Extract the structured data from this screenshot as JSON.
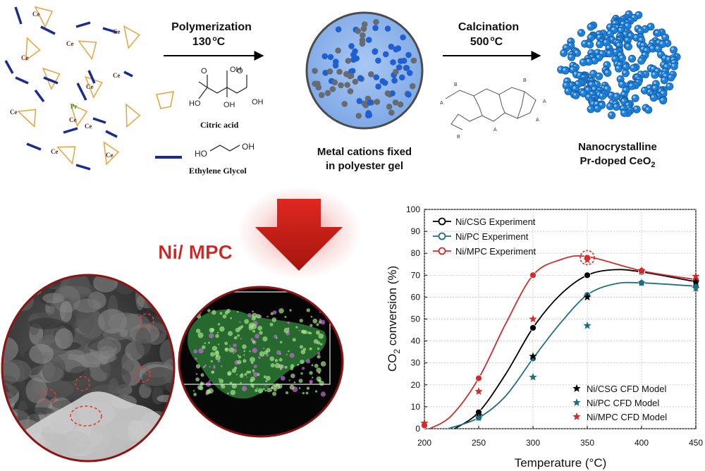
{
  "scheme": {
    "polymerization": {
      "title": "Polymerization",
      "temp": "130",
      "unit": "C"
    },
    "calcination": {
      "title": "Calcination",
      "temp": "500",
      "unit": "C"
    },
    "precursor_labels": {
      "ce": "Ce",
      "pr": "Pr"
    },
    "reagents": {
      "citric_acid": "Citric acid",
      "ethylene_glycol": "Ethylene Glycol",
      "ho": "HO",
      "oh": "OH"
    },
    "gel_caption": [
      "Metal cations fixed",
      "in polyester gel"
    ],
    "product_caption": {
      "line1": "Nanocrystalline",
      "line2_pre": "Pr-doped CeO",
      "line2_sub": "2"
    },
    "network_labels": {
      "a": "A",
      "b": "B"
    },
    "sample_label": "Ni/ MPC",
    "colors": {
      "cation_blue": "#1f5fd0",
      "cation_grey": "#666b73",
      "arrow_red": "#c8231e",
      "ligand_orange": "#e8a33c",
      "ligand_blue": "#1a2d8f"
    }
  },
  "chart_data": {
    "type": "line",
    "xlabel": "Temperature (°C)",
    "ylabel": "CO2 conversion (%)",
    "xlim": [
      200,
      450
    ],
    "ylim": [
      0,
      100
    ],
    "xticks": [
      200,
      250,
      300,
      350,
      400,
      450
    ],
    "yticks": [
      0,
      10,
      20,
      30,
      40,
      50,
      60,
      70,
      80,
      90,
      100
    ],
    "grid": true,
    "legend_top": [
      "Ni/CSG Experiment",
      "Ni/PC Experiment",
      "Ni/MPC Experiment"
    ],
    "legend_bottom": [
      "Ni/CSG CFD Model",
      "Ni/PC CFD Model",
      "Ni/MPC CFD Model"
    ],
    "series": [
      {
        "name": "Ni/CSG Experiment",
        "color": "#000000",
        "x": [
          250,
          300,
          350,
          400,
          450
        ],
        "y": [
          7.5,
          46,
          70,
          71.5,
          67
        ]
      },
      {
        "name": "Ni/PC Experiment",
        "color": "#1e6f82",
        "x": [
          250,
          300,
          350,
          400,
          450
        ],
        "y": [
          5,
          32,
          61,
          66.5,
          65
        ]
      },
      {
        "name": "Ni/MPC Experiment",
        "color": "#d42a2a",
        "x": [
          200,
          250,
          300,
          350,
          400,
          450
        ],
        "y": [
          1.5,
          23,
          70,
          78,
          72,
          68
        ]
      },
      {
        "name": "Ni/CSG CFD Model",
        "color": "#000000",
        "x": [
          250,
          300,
          350,
          400,
          450
        ],
        "y": [
          6,
          33,
          60,
          72,
          67
        ]
      },
      {
        "name": "Ni/PC CFD Model",
        "color": "#1e6f82",
        "x": [
          250,
          300,
          350,
          400,
          450
        ],
        "y": [
          5,
          23.5,
          47,
          66.5,
          64
        ]
      },
      {
        "name": "Ni/MPC CFD Model",
        "color": "#d42a2a",
        "x": [
          200,
          250,
          300,
          350,
          400,
          450
        ],
        "y": [
          2.5,
          17,
          50,
          77,
          72,
          69.5
        ]
      }
    ]
  }
}
